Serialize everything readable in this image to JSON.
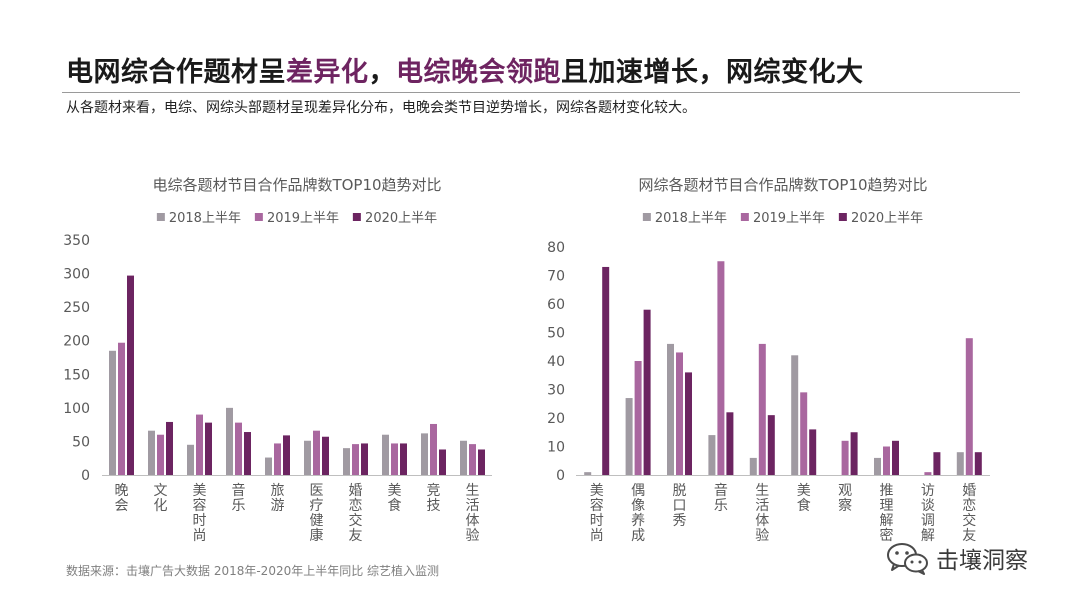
{
  "header": {
    "title_part1": "电网综合作题材呈",
    "title_hl1": "差异化",
    "title_part2": "，",
    "title_hl2": "电综晚会领跑",
    "title_part3": "且加速增长，网综变化大",
    "subtitle": "从各题材来看，电综、网综头部题材呈现差异化分布，电晚会类节目逆势增长，网综各题材变化较大。"
  },
  "footer": {
    "source": "数据来源：击壤广告大数据 2018年-2020年上半年同比 综艺植入监测",
    "brand": "击壤洞察"
  },
  "colors": {
    "s2018": "#a09aa2",
    "s2019": "#a9679f",
    "s2020": "#6c2461",
    "axis": "#bfbfbf",
    "tick": "#595959",
    "accent": "#6e2461"
  },
  "chart_data": [
    {
      "type": "bar",
      "title": "电综各题材节目合作品牌数TOP10趋势对比",
      "categories": [
        "晚会",
        "文化",
        "美容时尚",
        "音乐",
        "旅游",
        "医疗健康",
        "婚恋交友",
        "美食",
        "竞技",
        "生活体验"
      ],
      "series": [
        {
          "name": "2018上半年",
          "values": [
            185,
            66,
            45,
            100,
            26,
            51,
            40,
            60,
            62,
            51
          ]
        },
        {
          "name": "2019上半年",
          "values": [
            197,
            60,
            90,
            78,
            47,
            66,
            46,
            47,
            76,
            46
          ]
        },
        {
          "name": "2020上半年",
          "values": [
            297,
            79,
            78,
            64,
            59,
            57,
            47,
            47,
            38,
            38
          ]
        }
      ],
      "ylim": [
        0,
        350
      ],
      "yticks": [
        0,
        50,
        100,
        150,
        200,
        250,
        300,
        350
      ],
      "grid": false,
      "legend": "top"
    },
    {
      "type": "bar",
      "title": "网综各题材节目合作品牌数TOP10趋势对比",
      "categories": [
        "美容时尚",
        "偶像养成",
        "脱口秀",
        "音乐",
        "生活体验",
        "美食",
        "观察",
        "推理解密",
        "访谈调解",
        "婚恋交友"
      ],
      "series": [
        {
          "name": "2018上半年",
          "values": [
            1,
            27,
            46,
            14,
            6,
            42,
            0,
            6,
            0,
            8
          ]
        },
        {
          "name": "2019上半年",
          "values": [
            0,
            40,
            43,
            75,
            46,
            29,
            12,
            10,
            1,
            48
          ]
        },
        {
          "name": "2020上半年",
          "values": [
            73,
            58,
            36,
            22,
            21,
            16,
            15,
            12,
            8,
            8
          ]
        }
      ],
      "ylim": [
        0,
        80
      ],
      "yticks": [
        0,
        10,
        20,
        30,
        40,
        50,
        60,
        70,
        80
      ],
      "grid": false,
      "legend": "top"
    }
  ]
}
